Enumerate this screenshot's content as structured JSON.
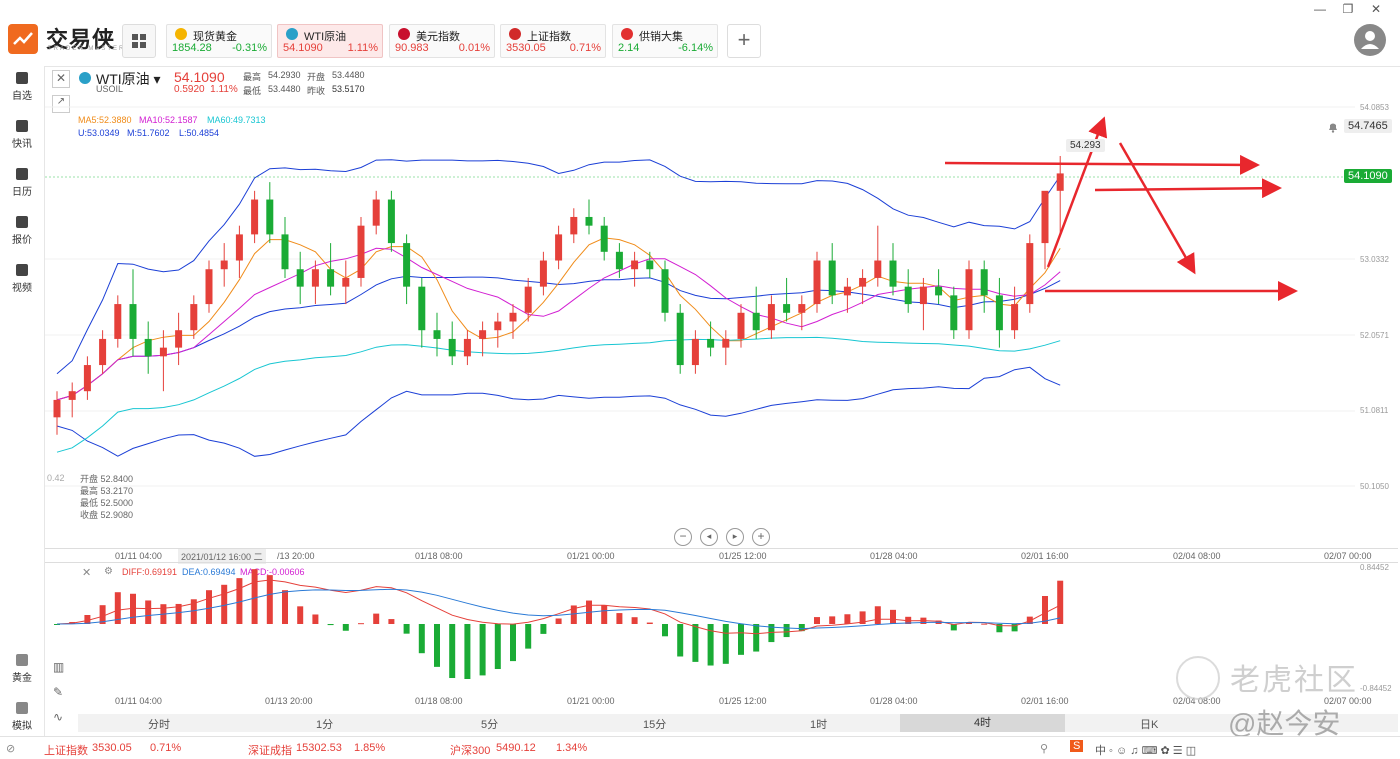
{
  "app": {
    "name": "交易侠",
    "sub": "TRADER MASTER"
  },
  "window_controls": [
    "—",
    "❐",
    "✕"
  ],
  "quotes": [
    {
      "name": "现货黄金",
      "price": "1854.28",
      "change": "-0.31%",
      "dir": "down",
      "icon_color": "#f5b400"
    },
    {
      "name": "WTI原油",
      "price": "54.1090",
      "change": "1.11%",
      "dir": "up",
      "icon_color": "#2aa0c8"
    },
    {
      "name": "美元指数",
      "price": "90.983",
      "change": "0.01%",
      "dir": "up",
      "icon_color": "#c8102e"
    },
    {
      "name": "上证指数",
      "price": "3530.05",
      "change": "0.71%",
      "dir": "up",
      "icon_color": "#d12a2a"
    },
    {
      "name": "供销大集",
      "price": "2.14",
      "change": "-6.14%",
      "dir": "down",
      "icon_color": "#e23030"
    }
  ],
  "sidebar": {
    "items": [
      "自选",
      "快讯",
      "日历",
      "报价",
      "视频"
    ],
    "bottom": [
      "黄金",
      "模拟"
    ]
  },
  "symbol": {
    "name": "WTI原油 ▾",
    "code": "USOIL",
    "price": "54.1090",
    "change": "0.5920",
    "change_pct": "1.11%",
    "high_label": "最高",
    "high": "54.2930",
    "open_label": "开盘",
    "open": "53.4480",
    "low_label": "最低",
    "low": "53.4480",
    "prev_label": "昨收",
    "prev": "53.5170"
  },
  "ma": {
    "ma5": "MA5:52.3880",
    "ma10": "MA10:52.1587",
    "ma60": "MA60:49.7313",
    "boll_u": "U:53.0349",
    "boll_m": "M:51.7602",
    "boll_l": "L:50.4854"
  },
  "ohlc_box": {
    "open": "开盘 52.8400",
    "high": "最高 53.2170",
    "low": "最低 52.5000",
    "close": "收盘 52.9080",
    "side": "0.42"
  },
  "price_axis": [
    "54.0853",
    "53.0332",
    "52.0571",
    "51.0811",
    "50.1050"
  ],
  "alert_price": "54.7465",
  "current_price_tag": "54.1090",
  "peak_label": "54.293",
  "time_axis": [
    "01/11 04:00",
    "2021/01/12 16:00 二",
    "/13 20:00",
    "01/18 08:00",
    "01/21 00:00",
    "01/25 12:00",
    "01/28 04:00",
    "02/01 16:00",
    "02/04 08:00",
    "02/07 00:00"
  ],
  "macd": {
    "diff": "DIFF:0.69191",
    "dea": "DEA:0.69494",
    "macd": "MACD:-0.00606",
    "top": "0.84452",
    "bottom": "-0.84452"
  },
  "macd_time_axis": [
    "01/11 04:00",
    "01/13 20:00",
    "01/18 08:00",
    "01/21 00:00",
    "01/25 12:00",
    "01/28 04:00",
    "02/01 16:00",
    "02/04 08:00",
    "02/07 00:00"
  ],
  "timeframes": [
    "分时",
    "1分",
    "5分",
    "15分",
    "1时",
    "4时",
    "日K"
  ],
  "selected_timeframe": "4时",
  "status": [
    {
      "name": "上证指数",
      "value": "3530.05",
      "chg": "0.71%"
    },
    {
      "name": "深证成指",
      "value": "15302.53",
      "chg": "1.85%"
    },
    {
      "name": "沪深300",
      "value": "5490.12",
      "chg": "1.34%"
    }
  ],
  "watermark": "老虎社区",
  "watermark2": "@赵今安",
  "colors": {
    "up": "#e5403a",
    "down": "#1aab35",
    "accent": "#f06a1f"
  },
  "chart_data": {
    "type": "candlestick",
    "series": [
      {
        "name": "K",
        "values": [
          [
            51.3,
            51.6,
            51.1,
            51.5
          ],
          [
            51.5,
            51.7,
            51.3,
            51.6
          ],
          [
            51.6,
            52.0,
            51.5,
            51.9
          ],
          [
            51.9,
            52.3,
            51.8,
            52.2
          ],
          [
            52.2,
            52.7,
            52.1,
            52.6
          ],
          [
            52.6,
            53.0,
            52.0,
            52.2
          ],
          [
            52.2,
            52.4,
            51.8,
            52.0
          ],
          [
            52.0,
            52.3,
            51.6,
            52.1
          ],
          [
            52.1,
            52.5,
            51.9,
            52.3
          ],
          [
            52.3,
            52.7,
            52.2,
            52.6
          ],
          [
            52.6,
            53.1,
            52.5,
            53.0
          ],
          [
            53.0,
            53.3,
            52.8,
            53.1
          ],
          [
            53.1,
            53.5,
            52.9,
            53.4
          ],
          [
            53.4,
            53.9,
            53.3,
            53.8
          ],
          [
            53.8,
            54.0,
            53.3,
            53.4
          ],
          [
            53.4,
            53.6,
            52.9,
            53.0
          ],
          [
            53.0,
            53.2,
            52.6,
            52.8
          ],
          [
            52.8,
            53.1,
            52.6,
            53.0
          ],
          [
            53.0,
            53.3,
            52.7,
            52.8
          ],
          [
            52.8,
            53.1,
            52.6,
            52.9
          ],
          [
            52.9,
            53.6,
            52.8,
            53.5
          ],
          [
            53.5,
            53.9,
            53.4,
            53.8
          ],
          [
            53.8,
            53.9,
            53.2,
            53.3
          ],
          [
            53.3,
            53.4,
            52.6,
            52.8
          ],
          [
            52.8,
            52.9,
            52.1,
            52.3
          ],
          [
            52.3,
            52.5,
            52.0,
            52.2
          ],
          [
            52.2,
            52.4,
            51.9,
            52.0
          ],
          [
            52.0,
            52.3,
            51.9,
            52.2
          ],
          [
            52.2,
            52.4,
            52.0,
            52.3
          ],
          [
            52.3,
            52.5,
            52.1,
            52.4
          ],
          [
            52.4,
            52.6,
            52.2,
            52.5
          ],
          [
            52.5,
            52.9,
            52.4,
            52.8
          ],
          [
            52.8,
            53.2,
            52.7,
            53.1
          ],
          [
            53.1,
            53.5,
            53.0,
            53.4
          ],
          [
            53.4,
            53.7,
            53.3,
            53.6
          ],
          [
            53.6,
            53.8,
            53.4,
            53.5
          ],
          [
            53.5,
            53.6,
            53.1,
            53.2
          ],
          [
            53.2,
            53.3,
            52.9,
            53.0
          ],
          [
            53.0,
            53.2,
            52.8,
            53.1
          ],
          [
            53.1,
            53.2,
            52.9,
            53.0
          ],
          [
            53.0,
            53.1,
            52.4,
            52.5
          ],
          [
            52.5,
            52.6,
            51.8,
            51.9
          ],
          [
            51.9,
            52.3,
            51.8,
            52.2
          ],
          [
            52.2,
            52.4,
            52.0,
            52.1
          ],
          [
            52.1,
            52.3,
            51.9,
            52.2
          ],
          [
            52.2,
            52.6,
            52.1,
            52.5
          ],
          [
            52.5,
            52.8,
            52.2,
            52.3
          ],
          [
            52.3,
            52.7,
            52.2,
            52.6
          ],
          [
            52.6,
            52.9,
            52.4,
            52.5
          ],
          [
            52.5,
            52.7,
            52.3,
            52.6
          ],
          [
            52.6,
            53.2,
            52.5,
            53.1
          ],
          [
            53.1,
            53.3,
            52.6,
            52.7
          ],
          [
            52.7,
            52.9,
            52.5,
            52.8
          ],
          [
            52.8,
            53.0,
            52.6,
            52.9
          ],
          [
            52.9,
            53.5,
            52.8,
            53.1
          ],
          [
            53.1,
            53.3,
            52.7,
            52.8
          ],
          [
            52.8,
            53.0,
            52.5,
            52.6
          ],
          [
            52.6,
            52.9,
            52.3,
            52.8
          ],
          [
            52.8,
            53.0,
            52.6,
            52.7
          ],
          [
            52.7,
            52.8,
            52.2,
            52.3
          ],
          [
            52.3,
            53.1,
            52.2,
            53.0
          ],
          [
            53.0,
            53.1,
            52.5,
            52.7
          ],
          [
            52.7,
            52.9,
            52.1,
            52.3
          ],
          [
            52.3,
            52.8,
            52.2,
            52.6
          ],
          [
            52.6,
            53.4,
            52.5,
            53.3
          ],
          [
            53.3,
            53.5,
            53.0,
            53.9
          ],
          [
            53.9,
            54.3,
            53.4,
            54.1
          ]
        ]
      }
    ],
    "ylim": [
      49.8,
      55.0
    ]
  }
}
